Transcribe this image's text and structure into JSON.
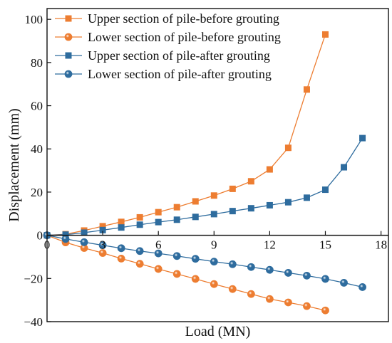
{
  "chart_data": {
    "type": "line",
    "xlabel": "Load (MN)",
    "ylabel": "Displacement (mm)",
    "xlim": [
      0,
      18.4
    ],
    "ylim": [
      -40,
      105
    ],
    "x_ticks": [
      0,
      3,
      6,
      9,
      12,
      15,
      18
    ],
    "x_tick_labels": [
      "0",
      "3",
      "6",
      "9",
      "12",
      "15",
      "18"
    ],
    "y_ticks": [
      -40,
      -20,
      0,
      20,
      40,
      60,
      80,
      100
    ],
    "y_tick_labels": [
      "−40",
      "−20",
      "0",
      "20",
      "40",
      "60",
      "80",
      "100"
    ],
    "grid": false,
    "legend_position": "top-left",
    "series": [
      {
        "name": "Upper section of pile-before grouting",
        "color": "#ED7D31",
        "marker": "square",
        "x": [
          0,
          1,
          2,
          3,
          4,
          5,
          6,
          7,
          8,
          9,
          10,
          11,
          12,
          13,
          14,
          15
        ],
        "y": [
          0,
          0.5,
          2.2,
          4.2,
          6.2,
          8.3,
          10.7,
          13.0,
          15.7,
          18.4,
          21.5,
          25.0,
          30.5,
          40.5,
          67.5,
          93.0
        ]
      },
      {
        "name": "Lower section of pile-before grouting",
        "color": "#ED7D31",
        "marker": "circle",
        "x": [
          0,
          1,
          2,
          3,
          4,
          5,
          6,
          7,
          8,
          9,
          10,
          11,
          12,
          13,
          14,
          15
        ],
        "y": [
          0,
          -3.3,
          -5.9,
          -8.2,
          -10.8,
          -13.2,
          -15.6,
          -17.9,
          -20.2,
          -22.6,
          -24.9,
          -27.2,
          -29.5,
          -31.1,
          -32.8,
          -34.8
        ]
      },
      {
        "name": "Upper section of pile-after grouting",
        "color": "#2E6C9E",
        "marker": "square",
        "x": [
          0,
          1,
          2,
          3,
          4,
          5,
          6,
          7,
          8,
          9,
          10,
          11,
          12,
          13,
          14,
          15,
          16,
          17
        ],
        "y": [
          0,
          0.3,
          1.2,
          2.4,
          3.6,
          4.9,
          6.1,
          7.2,
          8.5,
          9.8,
          11.2,
          12.5,
          13.9,
          15.3,
          17.4,
          21.1,
          31.5,
          45.0
        ]
      },
      {
        "name": "Lower section of pile-after grouting",
        "color": "#2E6C9E",
        "marker": "circle",
        "x": [
          0,
          1,
          2,
          3,
          4,
          5,
          6,
          7,
          8,
          9,
          10,
          11,
          12,
          13,
          14,
          15,
          16,
          17
        ],
        "y": [
          0,
          -1.7,
          -3.2,
          -4.6,
          -6.0,
          -7.3,
          -8.4,
          -9.6,
          -10.9,
          -12.2,
          -13.4,
          -14.7,
          -16.0,
          -17.4,
          -18.7,
          -20.2,
          -22.0,
          -24.0
        ]
      }
    ]
  }
}
